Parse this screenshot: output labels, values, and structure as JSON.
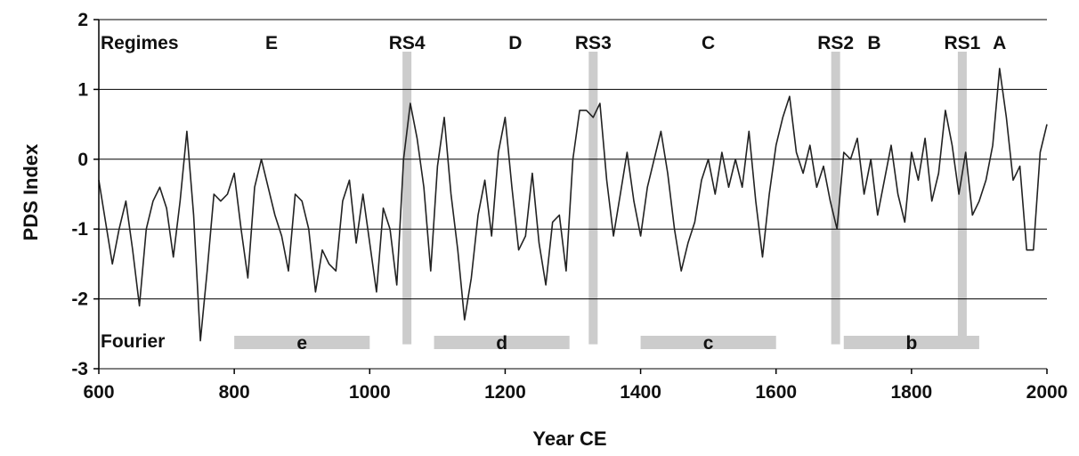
{
  "chart_data": {
    "type": "line",
    "title": "",
    "xlabel": "Year CE",
    "ylabel": "PDS Index",
    "xlim": [
      600,
      2000
    ],
    "ylim": [
      -3,
      2
    ],
    "xticks": [
      600,
      800,
      1000,
      1200,
      1400,
      1600,
      1800,
      2000
    ],
    "yticks": [
      2,
      1,
      0,
      -1,
      -2,
      -3
    ],
    "grid": true,
    "line_color": "#222222",
    "band_color": "#cccccc",
    "regimes_label": "Regimes",
    "fourier_label": "Fourier",
    "regimes": [
      {
        "label": "E",
        "x": 855
      },
      {
        "label": "D",
        "x": 1215
      },
      {
        "label": "C",
        "x": 1500
      },
      {
        "label": "B",
        "x": 1745
      },
      {
        "label": "A",
        "x": 1930
      }
    ],
    "regime_shifts": [
      {
        "label": "RS4",
        "x": 1055
      },
      {
        "label": "RS3",
        "x": 1330
      },
      {
        "label": "RS2",
        "x": 1688
      },
      {
        "label": "RS1",
        "x": 1875
      }
    ],
    "fourier_bands": [
      {
        "label": "e",
        "start": 800,
        "end": 1000
      },
      {
        "label": "d",
        "start": 1095,
        "end": 1295
      },
      {
        "label": "c",
        "start": 1400,
        "end": 1600
      },
      {
        "label": "b",
        "start": 1700,
        "end": 1900
      }
    ],
    "series": [
      {
        "x": [
          600,
          610,
          620,
          630,
          640,
          650,
          660,
          670,
          680,
          690,
          700,
          710,
          720,
          730,
          740,
          750,
          760,
          770,
          780,
          790,
          800,
          810,
          820,
          830,
          840,
          850,
          860,
          870,
          880,
          890,
          900,
          910,
          920,
          930,
          940,
          950,
          960,
          970,
          980,
          990,
          1000,
          1010,
          1020,
          1030,
          1040,
          1050,
          1060,
          1070,
          1080,
          1090,
          1100,
          1110,
          1120,
          1130,
          1140,
          1150,
          1160,
          1170,
          1180,
          1190,
          1200,
          1210,
          1220,
          1230,
          1240,
          1250,
          1260,
          1270,
          1280,
          1290,
          1300,
          1310,
          1320,
          1330,
          1340,
          1350,
          1360,
          1370,
          1380,
          1390,
          1400,
          1410,
          1420,
          1430,
          1440,
          1450,
          1460,
          1470,
          1480,
          1490,
          1500,
          1510,
          1520,
          1530,
          1540,
          1550,
          1560,
          1570,
          1580,
          1590,
          1600,
          1610,
          1620,
          1630,
          1640,
          1650,
          1660,
          1670,
          1680,
          1690,
          1700,
          1710,
          1720,
          1730,
          1740,
          1750,
          1760,
          1770,
          1780,
          1790,
          1800,
          1810,
          1820,
          1830,
          1840,
          1850,
          1860,
          1870,
          1880,
          1890,
          1900,
          1910,
          1920,
          1930,
          1940,
          1950,
          1960,
          1970,
          1980,
          1990,
          2000
        ],
        "values": [
          -0.3,
          -0.9,
          -1.5,
          -1.0,
          -0.6,
          -1.3,
          -2.1,
          -1.0,
          -0.6,
          -0.4,
          -0.7,
          -1.4,
          -0.6,
          0.4,
          -0.8,
          -2.6,
          -1.6,
          -0.5,
          -0.6,
          -0.5,
          -0.2,
          -1.0,
          -1.7,
          -0.4,
          0.0,
          -0.4,
          -0.8,
          -1.1,
          -1.6,
          -0.5,
          -0.6,
          -1.0,
          -1.9,
          -1.3,
          -1.5,
          -1.6,
          -0.6,
          -0.3,
          -1.2,
          -0.5,
          -1.2,
          -1.9,
          -0.7,
          -1.0,
          -1.8,
          0.0,
          0.8,
          0.3,
          -0.4,
          -1.6,
          -0.1,
          0.6,
          -0.5,
          -1.3,
          -2.3,
          -1.7,
          -0.8,
          -0.3,
          -1.1,
          0.1,
          0.6,
          -0.4,
          -1.3,
          -1.1,
          -0.2,
          -1.2,
          -1.8,
          -0.9,
          -0.8,
          -1.6,
          0.0,
          0.7,
          0.7,
          0.6,
          0.8,
          -0.3,
          -1.1,
          -0.5,
          0.1,
          -0.6,
          -1.1,
          -0.4,
          0.0,
          0.4,
          -0.2,
          -1.0,
          -1.6,
          -1.2,
          -0.9,
          -0.3,
          0.0,
          -0.5,
          0.1,
          -0.4,
          0.0,
          -0.4,
          0.4,
          -0.6,
          -1.4,
          -0.5,
          0.2,
          0.6,
          0.9,
          0.1,
          -0.2,
          0.2,
          -0.4,
          -0.1,
          -0.6,
          -1.0,
          0.1,
          0.0,
          0.3,
          -0.5,
          0.0,
          -0.8,
          -0.3,
          0.2,
          -0.5,
          -0.9,
          0.1,
          -0.3,
          0.3,
          -0.6,
          -0.2,
          0.7,
          0.2,
          -0.5,
          0.1,
          -0.8,
          -0.6,
          -0.3,
          0.2,
          1.3,
          0.6,
          -0.3,
          -0.1,
          -1.3,
          -1.3,
          0.1,
          0.5
        ]
      }
    ]
  }
}
